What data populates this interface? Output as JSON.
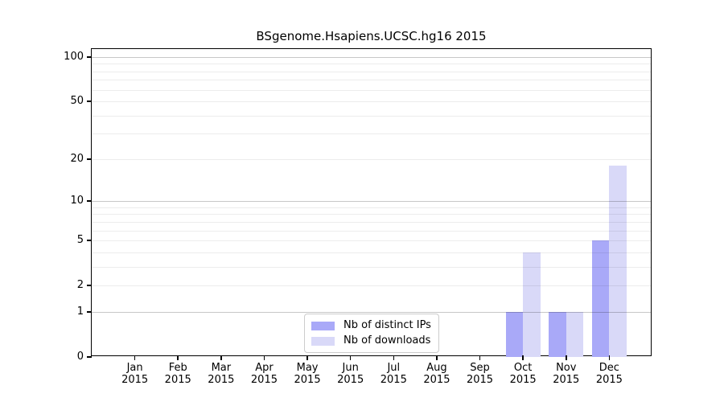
{
  "title": "BSgenome.Hsapiens.UCSC.hg16 2015",
  "chart_data": {
    "type": "bar",
    "title": "BSgenome.Hsapiens.UCSC.hg16 2015",
    "categories": [
      "Jan",
      "Feb",
      "Mar",
      "Apr",
      "May",
      "Jun",
      "Jul",
      "Aug",
      "Sep",
      "Oct",
      "Nov",
      "Dec"
    ],
    "year": "2015",
    "series": [
      {
        "name": "Nb of distinct IPs",
        "color": "#a9a9f8",
        "values": [
          0,
          0,
          0,
          0,
          0,
          0,
          0,
          0,
          0,
          1,
          1,
          5
        ]
      },
      {
        "name": "Nb of downloads",
        "color": "#d9d9f8",
        "values": [
          0,
          0,
          0,
          0,
          0,
          0,
          0,
          0,
          0,
          4,
          1,
          18
        ]
      }
    ],
    "xlabel": "",
    "ylabel": "",
    "yscale": "log1p",
    "ylim": [
      0,
      100
    ],
    "yticks": [
      0,
      1,
      2,
      5,
      10,
      20,
      50,
      100
    ],
    "major_gridlines": [
      1,
      10,
      100
    ],
    "minor_gridlines": [
      2,
      3,
      4,
      5,
      6,
      7,
      8,
      9,
      20,
      30,
      40,
      50,
      60,
      70,
      80,
      90
    ],
    "grid": true,
    "legend_position": "lower center"
  }
}
